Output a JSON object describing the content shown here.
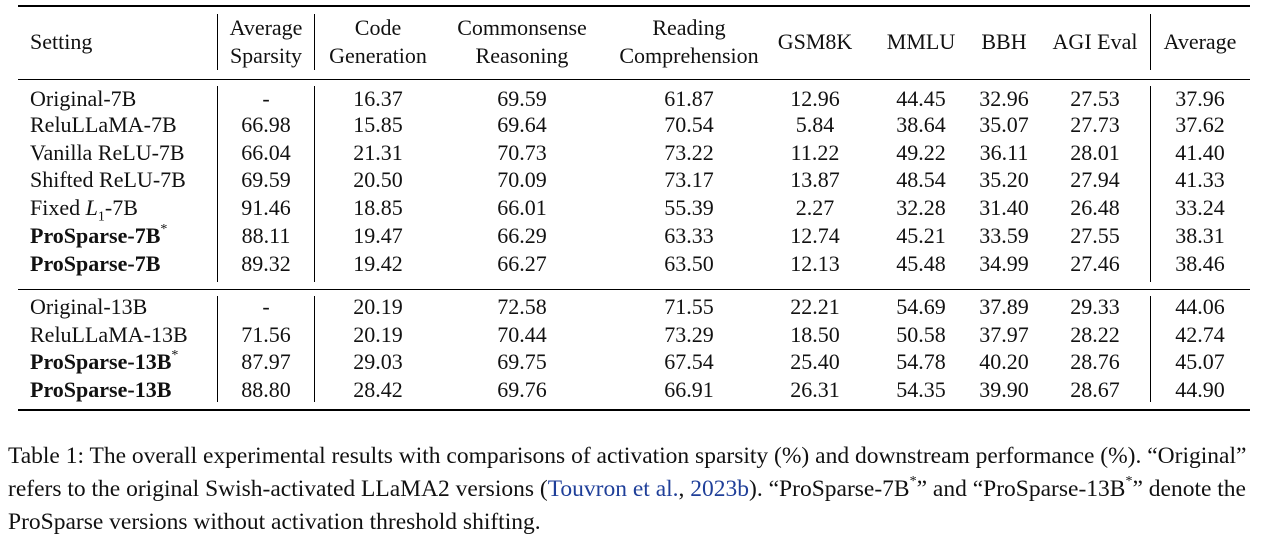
{
  "table": {
    "headers": [
      {
        "lines": [
          "Setting"
        ]
      },
      {
        "lines": [
          "Average",
          "Sparsity"
        ]
      },
      {
        "lines": [
          "Code",
          "Generation"
        ]
      },
      {
        "lines": [
          "Commonsense",
          "Reasoning"
        ]
      },
      {
        "lines": [
          "Reading",
          "Comprehension"
        ]
      },
      {
        "lines": [
          "GSM8K"
        ]
      },
      {
        "lines": [
          "MMLU"
        ]
      },
      {
        "lines": [
          "BBH"
        ]
      },
      {
        "lines": [
          "AGI Eval"
        ]
      },
      {
        "lines": [
          "Average"
        ]
      }
    ],
    "group1": [
      {
        "setting": "Original-7B",
        "sup": "",
        "bold": false,
        "values": [
          "-",
          "16.37",
          "69.59",
          "61.87",
          "12.96",
          "44.45",
          "32.96",
          "27.53",
          "37.96"
        ]
      },
      {
        "setting": "ReluLLaMA-7B",
        "sup": "",
        "bold": false,
        "values": [
          "66.98",
          "15.85",
          "69.64",
          "70.54",
          "5.84",
          "38.64",
          "35.07",
          "27.73",
          "37.62"
        ]
      },
      {
        "setting": "Vanilla ReLU-7B",
        "sup": "",
        "bold": false,
        "values": [
          "66.04",
          "21.31",
          "70.73",
          "73.22",
          "11.22",
          "49.22",
          "36.11",
          "28.01",
          "41.40"
        ]
      },
      {
        "setting": "Shifted ReLU-7B",
        "sup": "",
        "bold": false,
        "values": [
          "69.59",
          "20.50",
          "70.09",
          "73.17",
          "13.87",
          "48.54",
          "35.20",
          "27.94",
          "41.33"
        ]
      },
      {
        "setting": "Fixed L1-7B",
        "sup": "",
        "bold": false,
        "values": [
          "91.46",
          "18.85",
          "66.01",
          "55.39",
          "2.27",
          "32.28",
          "31.40",
          "26.48",
          "33.24"
        ]
      },
      {
        "setting": "ProSparse-7B",
        "sup": "*",
        "bold": true,
        "values": [
          "88.11",
          "19.47",
          "66.29",
          "63.33",
          "12.74",
          "45.21",
          "33.59",
          "27.55",
          "38.31"
        ]
      },
      {
        "setting": "ProSparse-7B",
        "sup": "",
        "bold": true,
        "values": [
          "89.32",
          "19.42",
          "66.27",
          "63.50",
          "12.13",
          "45.48",
          "34.99",
          "27.46",
          "38.46"
        ]
      }
    ],
    "group2": [
      {
        "setting": "Original-13B",
        "sup": "",
        "bold": false,
        "values": [
          "-",
          "20.19",
          "72.58",
          "71.55",
          "22.21",
          "54.69",
          "37.89",
          "29.33",
          "44.06"
        ]
      },
      {
        "setting": "ReluLLaMA-13B",
        "sup": "",
        "bold": false,
        "values": [
          "71.56",
          "20.19",
          "70.44",
          "73.29",
          "18.50",
          "50.58",
          "37.97",
          "28.22",
          "42.74"
        ]
      },
      {
        "setting": "ProSparse-13B",
        "sup": "*",
        "bold": true,
        "values": [
          "87.97",
          "29.03",
          "69.75",
          "67.54",
          "25.40",
          "54.78",
          "40.20",
          "28.76",
          "45.07"
        ]
      },
      {
        "setting": "ProSparse-13B",
        "sup": "",
        "bold": true,
        "values": [
          "88.80",
          "28.42",
          "69.76",
          "66.91",
          "26.31",
          "54.35",
          "39.90",
          "28.67",
          "44.90"
        ]
      }
    ]
  },
  "caption": {
    "part1": "Table 1: The overall experimental results with comparisons of activation sparsity (%) and downstream performance (%). “Original” refers to the original Swish-activated LLaMA2 versions (",
    "cite_author": "Touvron et al.",
    "sep": ", ",
    "cite_year": "2023b",
    "part2": "). “ProSparse-7B",
    "sup1": "*",
    "part3": "” and “ProSparse-13B",
    "sup2": "*",
    "part4": "” denote the ProSparse versions without activation threshold shifting."
  }
}
